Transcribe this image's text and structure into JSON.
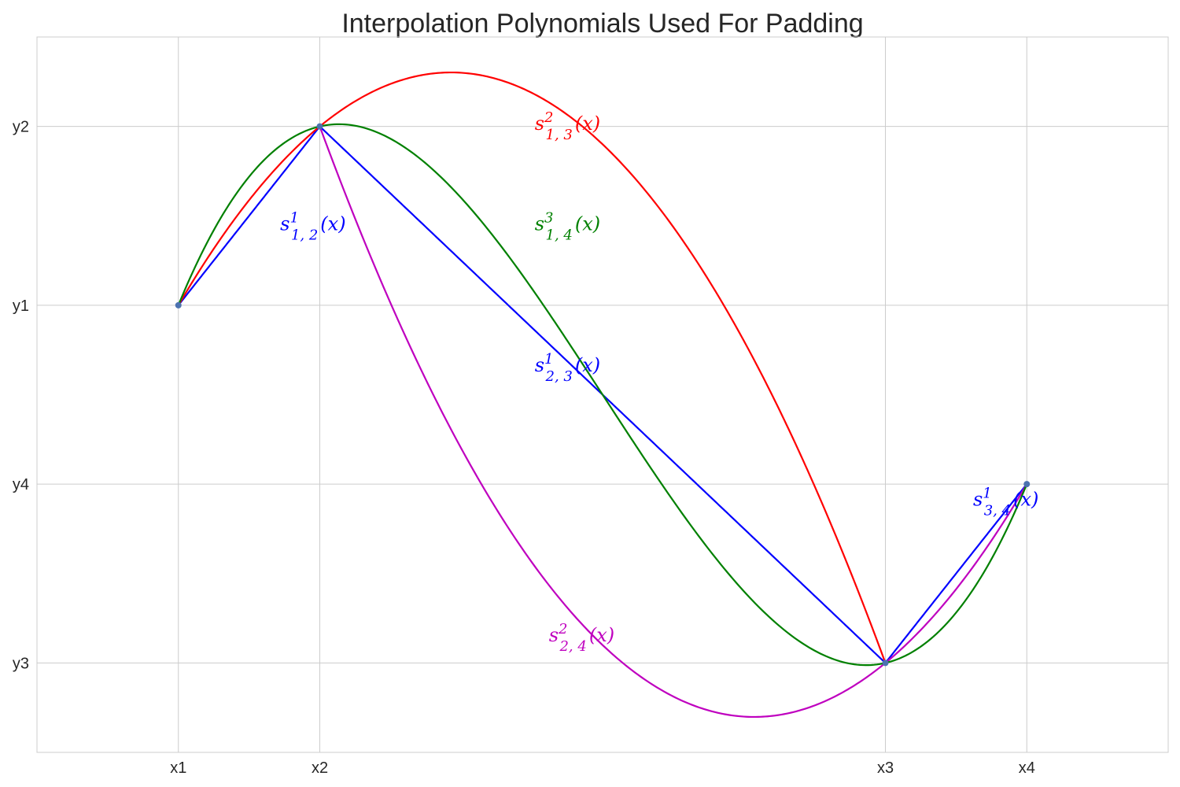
{
  "chart_data": {
    "type": "line",
    "title": "Interpolation Polynomials Used For Padding",
    "xlabel": "",
    "ylabel": "",
    "x_ticks": [
      {
        "label": "x1",
        "value": 0
      },
      {
        "label": "x2",
        "value": 1
      },
      {
        "label": "x3",
        "value": 5
      },
      {
        "label": "x4",
        "value": 6
      }
    ],
    "y_ticks": [
      {
        "label": "y3",
        "value": 0
      },
      {
        "label": "y4",
        "value": 1
      },
      {
        "label": "y1",
        "value": 2
      },
      {
        "label": "y2",
        "value": 3
      }
    ],
    "xlim": [
      -1,
      7
    ],
    "ylim": [
      -0.5,
      3.5
    ],
    "grid": true,
    "points": [
      {
        "x": 0,
        "y": 2
      },
      {
        "x": 1,
        "y": 3
      },
      {
        "x": 5,
        "y": 0
      },
      {
        "x": 6,
        "y": 1
      }
    ],
    "point_color": "#4c72b0",
    "series": [
      {
        "label": {
          "base": "s",
          "sup": "1",
          "sub": "1, 2"
        },
        "degree": 1,
        "color": "#0000ff",
        "x_range": [
          0,
          1
        ],
        "knots": [
          [
            0,
            2
          ],
          [
            1,
            3
          ]
        ],
        "label_at": [
          0.72,
          2.42
        ]
      },
      {
        "label": {
          "base": "s",
          "sup": "1",
          "sub": "2, 3"
        },
        "degree": 1,
        "color": "#0000ff",
        "x_range": [
          1,
          5
        ],
        "knots": [
          [
            1,
            3
          ],
          [
            5,
            0
          ]
        ],
        "label_at": [
          2.52,
          1.63
        ]
      },
      {
        "label": {
          "base": "s",
          "sup": "1",
          "sub": "3, 4"
        },
        "degree": 1,
        "color": "#0000ff",
        "x_range": [
          5,
          6
        ],
        "knots": [
          [
            5,
            0
          ],
          [
            6,
            1
          ]
        ],
        "label_at": [
          5.62,
          0.88
        ]
      },
      {
        "label": {
          "base": "s",
          "sup": "2",
          "sub": "1, 3"
        },
        "degree": 2,
        "color": "#ff0000",
        "x_range": [
          0,
          5
        ],
        "knots": [
          [
            0,
            2
          ],
          [
            1,
            3
          ],
          [
            5,
            0
          ]
        ],
        "label_at": [
          2.52,
          2.98
        ]
      },
      {
        "label": {
          "base": "s",
          "sup": "2",
          "sub": "2, 4"
        },
        "degree": 2,
        "color": "#bf00bf",
        "x_range": [
          1,
          6
        ],
        "knots": [
          [
            1,
            3
          ],
          [
            5,
            0
          ],
          [
            6,
            1
          ]
        ],
        "label_at": [
          2.62,
          0.12
        ]
      },
      {
        "label": {
          "base": "s",
          "sup": "3",
          "sub": "1, 4"
        },
        "degree": 3,
        "color": "#008000",
        "x_range": [
          0,
          6
        ],
        "knots": [
          [
            0,
            2
          ],
          [
            1,
            3
          ],
          [
            5,
            0
          ],
          [
            6,
            1
          ]
        ],
        "label_at": [
          2.52,
          2.42
        ]
      }
    ],
    "label_suffix": "(x)"
  }
}
